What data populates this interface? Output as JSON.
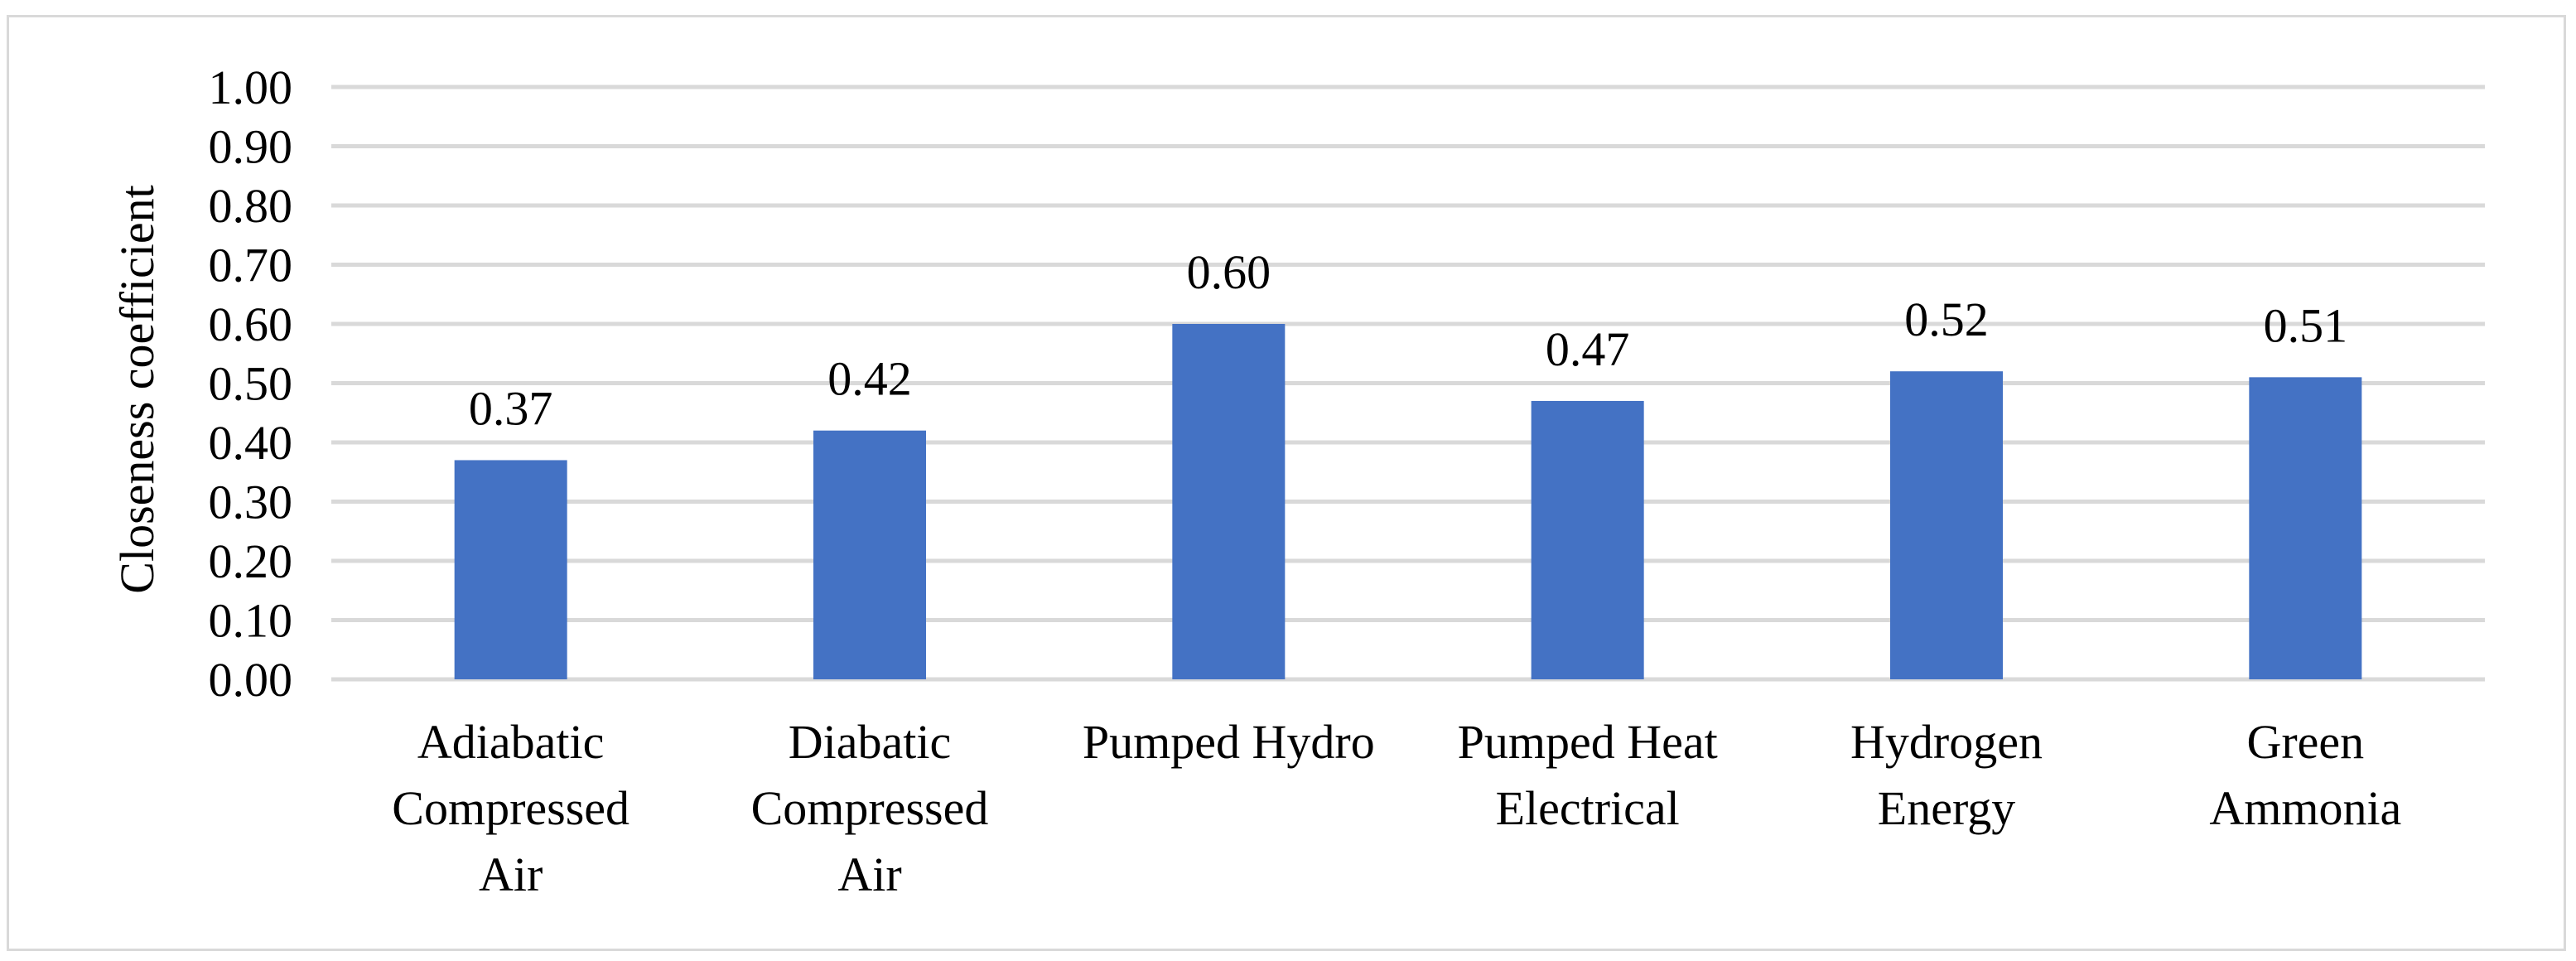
{
  "chart_data": {
    "type": "bar",
    "title": "",
    "xlabel": "",
    "ylabel": "Closeness coefficient",
    "ylim": [
      0,
      1
    ],
    "yticks": [
      "0.00",
      "0.10",
      "0.20",
      "0.30",
      "0.40",
      "0.50",
      "0.60",
      "0.70",
      "0.80",
      "0.90",
      "1.00"
    ],
    "grid": true,
    "legend": "none",
    "bar_color": "#4472c4",
    "gridline_color": "#d9d9d9",
    "categories": [
      [
        "Adiabatic",
        "Compressed",
        "Air"
      ],
      [
        "Diabatic",
        "Compressed",
        "Air"
      ],
      [
        "Pumped Hydro"
      ],
      [
        "Pumped Heat",
        "Electrical"
      ],
      [
        "Hydrogen",
        "Energy"
      ],
      [
        "Green",
        "Ammonia"
      ]
    ],
    "values": [
      0.37,
      0.42,
      0.6,
      0.47,
      0.52,
      0.51
    ],
    "data_labels": [
      "0.37",
      "0.42",
      "0.60",
      "0.47",
      "0.52",
      "0.51"
    ]
  }
}
